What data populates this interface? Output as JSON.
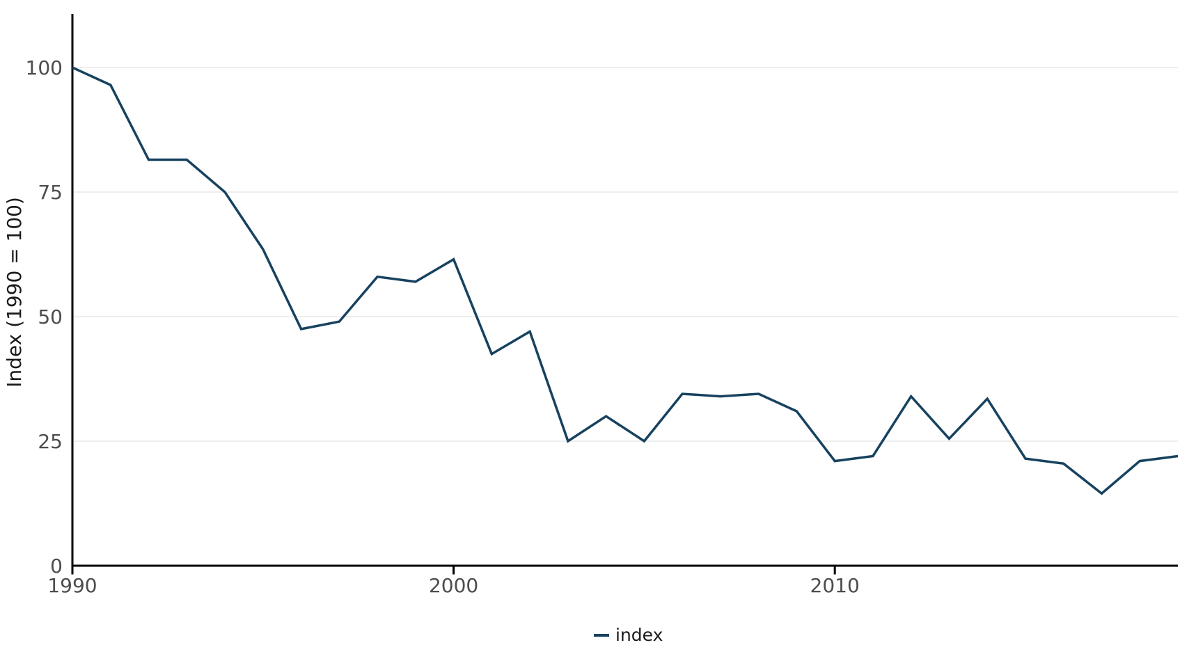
{
  "chart_data": {
    "type": "line",
    "title": "",
    "x_label": "",
    "y_label": "Index (1990 = 100)",
    "x": [
      1990,
      1991,
      1992,
      1993,
      1994,
      1995,
      1996,
      1997,
      1998,
      1999,
      2000,
      2001,
      2002,
      2003,
      2004,
      2005,
      2006,
      2007,
      2008,
      2009,
      2010,
      2011,
      2012,
      2013,
      2014,
      2015,
      2016,
      2017,
      2018,
      2019
    ],
    "series": [
      {
        "name": "index",
        "color": "#17425F",
        "values": [
          100,
          96.5,
          81.5,
          81.5,
          75,
          63.5,
          47.5,
          49,
          58,
          57,
          61.5,
          42.5,
          47,
          25,
          30,
          25,
          34.5,
          34,
          34.5,
          31,
          21,
          22,
          34,
          25.5,
          33.5,
          21.5,
          20.5,
          14.5,
          21,
          22
        ]
      }
    ],
    "x_ticks": [
      1990,
      2000,
      2010
    ],
    "y_ticks": [
      0,
      25,
      50,
      75,
      100
    ],
    "xlim": [
      1990,
      2019
    ],
    "ylim": [
      0,
      110
    ],
    "grid": {
      "horizontal": true,
      "vertical": false,
      "color": "#ECECEC"
    },
    "legend": {
      "position": "bottom-center",
      "label": "index"
    }
  },
  "styles": {
    "background": "#FFFFFF",
    "axis_color": "#000000",
    "tick_label_color": "#4D4D4D",
    "text_color": "#1A1A1A"
  }
}
